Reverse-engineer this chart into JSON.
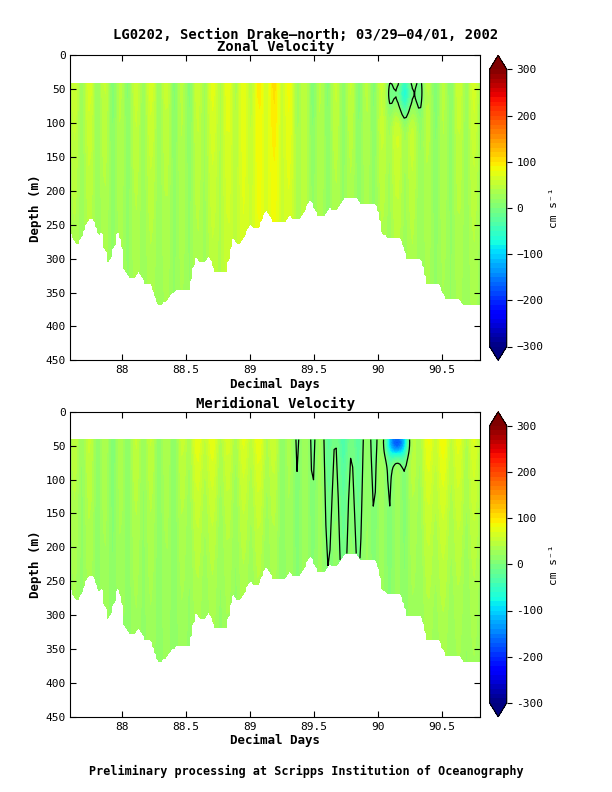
{
  "title": "LG0202, Section Drake–north; 03/29–04/01, 2002",
  "subtitle": "Preliminary processing at Scripps Institution of Oceanography",
  "plot1_title": "Zonal Velocity",
  "plot2_title": "Meridional Velocity",
  "xlabel": "Decimal Days",
  "ylabel": "Depth (m)",
  "cbar_label": "cm s⁻¹",
  "xlim": [
    87.6,
    90.8
  ],
  "ylim": [
    450,
    0
  ],
  "xticks": [
    88,
    88.5,
    89,
    89.5,
    90,
    90.5
  ],
  "yticks": [
    0,
    50,
    100,
    150,
    200,
    250,
    300,
    350,
    400,
    450
  ],
  "clim": [
    -300,
    300
  ],
  "cticks": [
    300,
    200,
    100,
    0,
    -100,
    -200,
    -300
  ],
  "surface_blank_depth": 40,
  "background_color": "#ffffff"
}
